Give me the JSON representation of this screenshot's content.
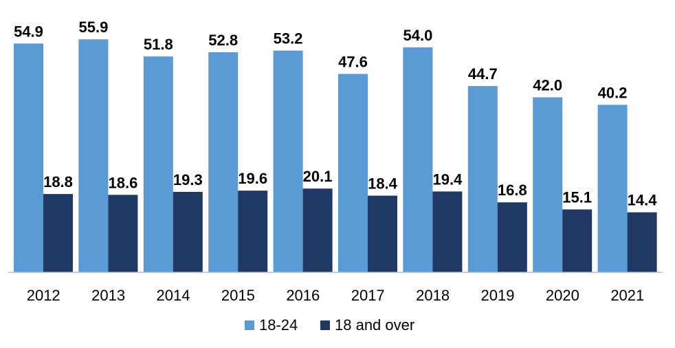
{
  "chart_data": {
    "type": "bar",
    "title": "",
    "xlabel": "",
    "ylabel": "",
    "categories": [
      "2012",
      "2013",
      "2014",
      "2015",
      "2016",
      "2017",
      "2018",
      "2019",
      "2020",
      "2021"
    ],
    "series": [
      {
        "name": "18-24",
        "color": "#5B9BD5",
        "values": [
          54.9,
          55.9,
          51.8,
          52.8,
          53.2,
          47.6,
          54.0,
          44.7,
          42.0,
          40.2
        ]
      },
      {
        "name": "18 and over",
        "color": "#1F3864",
        "values": [
          18.8,
          18.6,
          19.3,
          19.6,
          20.1,
          18.4,
          19.4,
          16.8,
          15.1,
          14.4
        ]
      }
    ],
    "ylim": [
      0,
      60
    ],
    "grid": false,
    "legend": "bottom-center",
    "data_labels": true
  }
}
